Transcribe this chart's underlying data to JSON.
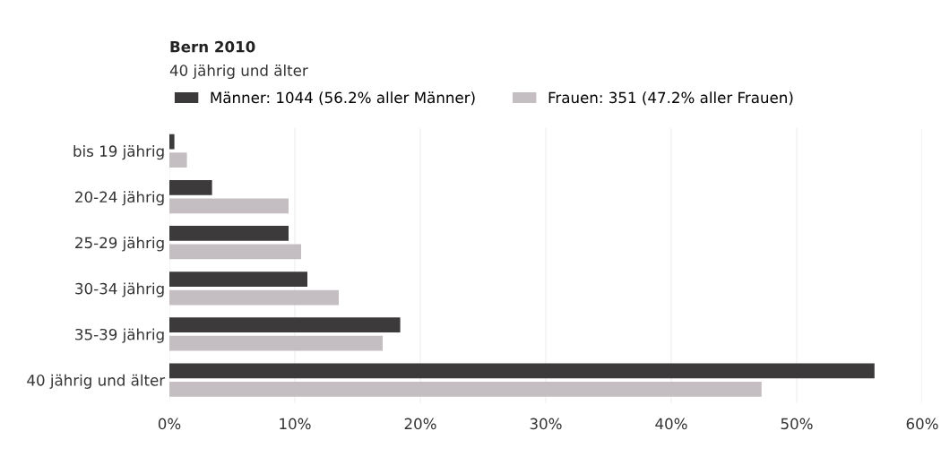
{
  "chart_data": {
    "type": "bar",
    "orientation": "horizontal",
    "title": "Bern 2010",
    "subtitle": "40 jährig und älter",
    "categories": [
      "bis 19 jährig",
      "20-24 jährig",
      "25-29 jährig",
      "30-34 jährig",
      "35-39 jährig",
      "40 jährig und älter"
    ],
    "series": [
      {
        "name": "Männer: 1044 (56.2% aller Männer)",
        "color": "#3c3a3b",
        "values": [
          0.4,
          3.4,
          9.5,
          11.0,
          18.4,
          56.2
        ]
      },
      {
        "name": "Frauen: 351 (47.2% aller Frauen)",
        "color": "#c4bec3",
        "values": [
          1.4,
          9.5,
          10.5,
          13.5,
          17.0,
          47.2
        ]
      }
    ],
    "xlim": [
      0,
      60
    ],
    "xticks": [
      {
        "value": 0,
        "label": "0%"
      },
      {
        "value": 10,
        "label": "10%"
      },
      {
        "value": 20,
        "label": "20%"
      },
      {
        "value": 30,
        "label": "30%"
      },
      {
        "value": 40,
        "label": "40%"
      },
      {
        "value": 50,
        "label": "50%"
      },
      {
        "value": 60,
        "label": "60%"
      }
    ],
    "grid": "x",
    "legend": "top left"
  }
}
